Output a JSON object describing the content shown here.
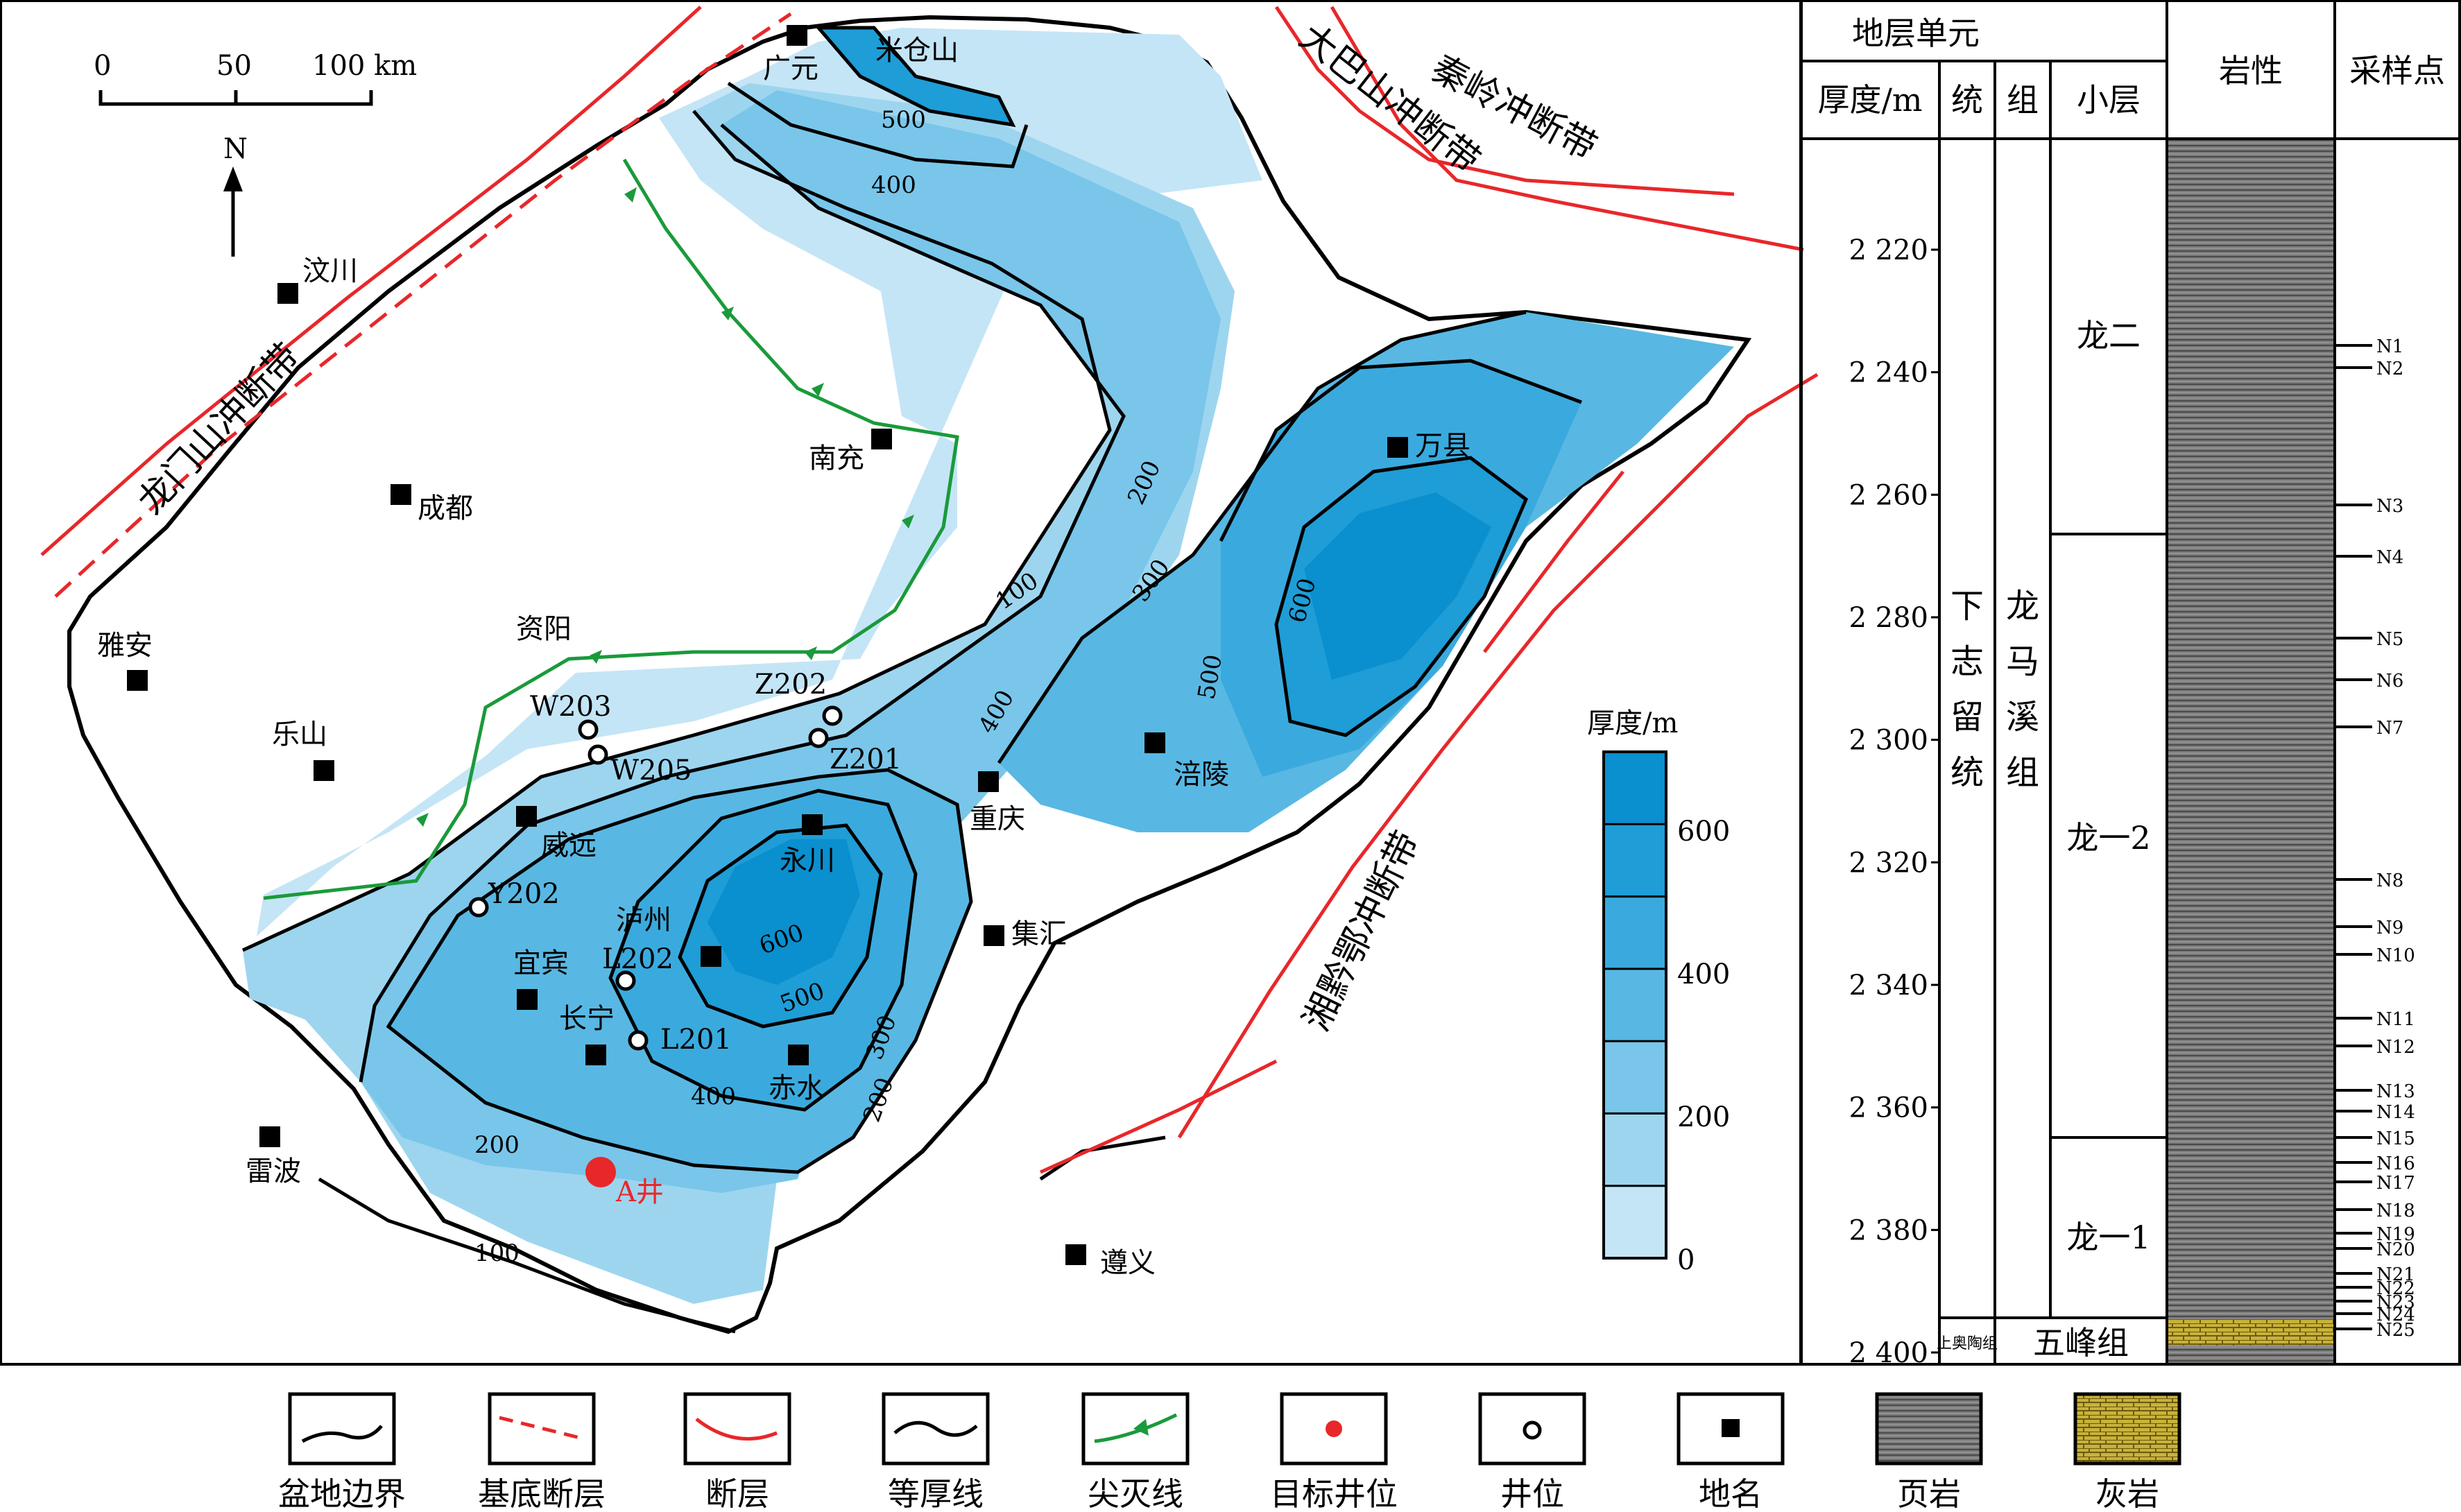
{
  "map": {
    "scale_ticks": [
      "0",
      "50",
      "100 km"
    ],
    "north": "N",
    "cities": {
      "guangyuan": "广元",
      "micangshan": "米仓山",
      "wenchuan": "汶川",
      "nanchong": "南充",
      "chengdu": "成都",
      "ziyang": "资阳",
      "yaan": "雅安",
      "leshan": "乐山",
      "wanxian": "万县",
      "fuling": "涪陵",
      "chongqing": "重庆",
      "weiyuan": "威远",
      "yongchuan": "永川",
      "luzhou": "泸州",
      "yibin": "宜宾",
      "changning": "长宁",
      "jihui": "集汇",
      "chishui": "赤水",
      "leibo": "雷波",
      "zunyi": "遵义"
    },
    "wells": {
      "w203": "W203",
      "w205": "W205",
      "z202": "Z202",
      "z201": "Z201",
      "y202": "Y202",
      "l202": "L202",
      "l201": "L201"
    },
    "target_well": "A井",
    "faults": {
      "longmenshan": "龙门山冲断带",
      "qinling": "秦岭冲断带",
      "dabashan": "大巴山冲断带",
      "xiangqiane": "湘黔鄂冲断带"
    },
    "contour_labels": {
      "c500a": "500",
      "c400a": "400",
      "c100": "100",
      "c200a": "200",
      "c300a": "300",
      "c600a": "600",
      "c500b": "500",
      "c400b": "400",
      "c600b": "600",
      "c500c": "500",
      "c400c": "400",
      "c300b": "300",
      "c200b": "200",
      "c200c": "200",
      "c100b": "100"
    },
    "thickness_legend": {
      "title": "厚度/m",
      "ticks": [
        "600",
        "400",
        "200",
        "0"
      ],
      "colors": [
        "#0a8fcf",
        "#1e9dd6",
        "#3aaade",
        "#58b8e3",
        "#79c6ea",
        "#9dd5ef",
        "#c4e5f6"
      ]
    }
  },
  "column": {
    "header_unit": "地层单元",
    "header_depth": "厚度/m",
    "header_series": "统",
    "header_formation": "组",
    "header_sublayer": "小层",
    "header_lithology": "岩性",
    "header_samples": "采样点",
    "depths": [
      "2 220",
      "2 240",
      "2 260",
      "2 280",
      "2 300",
      "2 320",
      "2 340",
      "2 360",
      "2 380",
      "2 400"
    ],
    "series_label": "下志留统",
    "formation_label": "龙马溪组",
    "sublayers": [
      "龙二",
      "龙一2",
      "龙一1"
    ],
    "upper_ordovician": "上奥陶组",
    "wufeng": "五峰组",
    "samples": [
      "N1",
      "N2",
      "N3",
      "N4",
      "N5",
      "N6",
      "N7",
      "N8",
      "N9",
      "N10",
      "N11",
      "N12",
      "N13",
      "N14",
      "N15",
      "N16",
      "N17",
      "N18",
      "N19",
      "N20",
      "N21",
      "N22",
      "N23",
      "N24",
      "N25"
    ]
  },
  "legend": {
    "items": [
      "盆地边界",
      "基底断层",
      "断层",
      "等厚线",
      "尖灭线",
      "目标井位",
      "井位",
      "地名",
      "页岩",
      "灰岩"
    ]
  },
  "colors": {
    "fault": "#e8272a",
    "pinchout": "#1a9a3a",
    "target": "#e8272a"
  }
}
